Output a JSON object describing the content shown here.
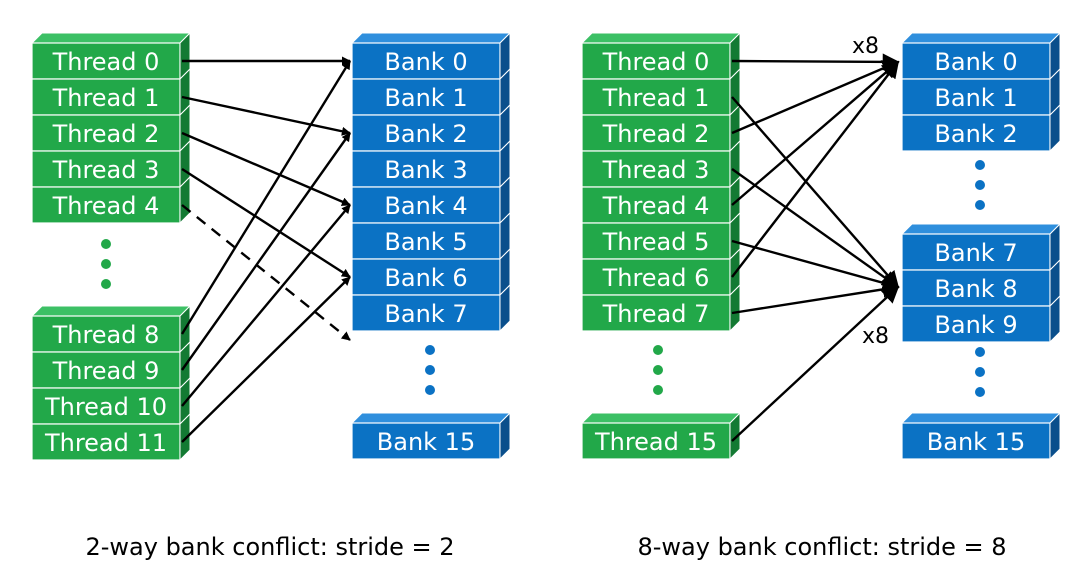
{
  "colors": {
    "thread_front": "#22a849",
    "thread_side": "#137a33",
    "thread_top": "#3cc065",
    "bank_front": "#0b72c4",
    "bank_side": "#0a4f8c",
    "bank_top": "#2f8fdd",
    "arrow": "#000000"
  },
  "panels": [
    {
      "caption": "2-way bank conflict: stride = 2",
      "threads_top": [
        "Thread 0",
        "Thread 1",
        "Thread 2",
        "Thread 3",
        "Thread 4"
      ],
      "threads_bottom": [
        "Thread 8",
        "Thread 9",
        "Thread 10",
        "Thread 11"
      ],
      "banks_top": [
        "Bank 0",
        "Bank 1",
        "Bank 2",
        "Bank 3",
        "Bank 4",
        "Bank 5",
        "Bank 6",
        "Bank 7"
      ],
      "banks_bottom": [
        "Bank 15"
      ]
    },
    {
      "caption": "8-way bank conflict: stride = 8",
      "threads_top": [
        "Thread 0",
        "Thread 1",
        "Thread 2",
        "Thread 3",
        "Thread 4",
        "Thread 5",
        "Thread 6",
        "Thread 7"
      ],
      "threads_bottom": [
        "Thread 15"
      ],
      "banks_top": [
        "Bank 0",
        "Bank 1",
        "Bank 2"
      ],
      "banks_middle": [
        "Bank 7",
        "Bank 8",
        "Bank 9"
      ],
      "banks_bottom": [
        "Bank 15"
      ],
      "multiplier_labels": [
        "x8",
        "x8"
      ]
    }
  ]
}
